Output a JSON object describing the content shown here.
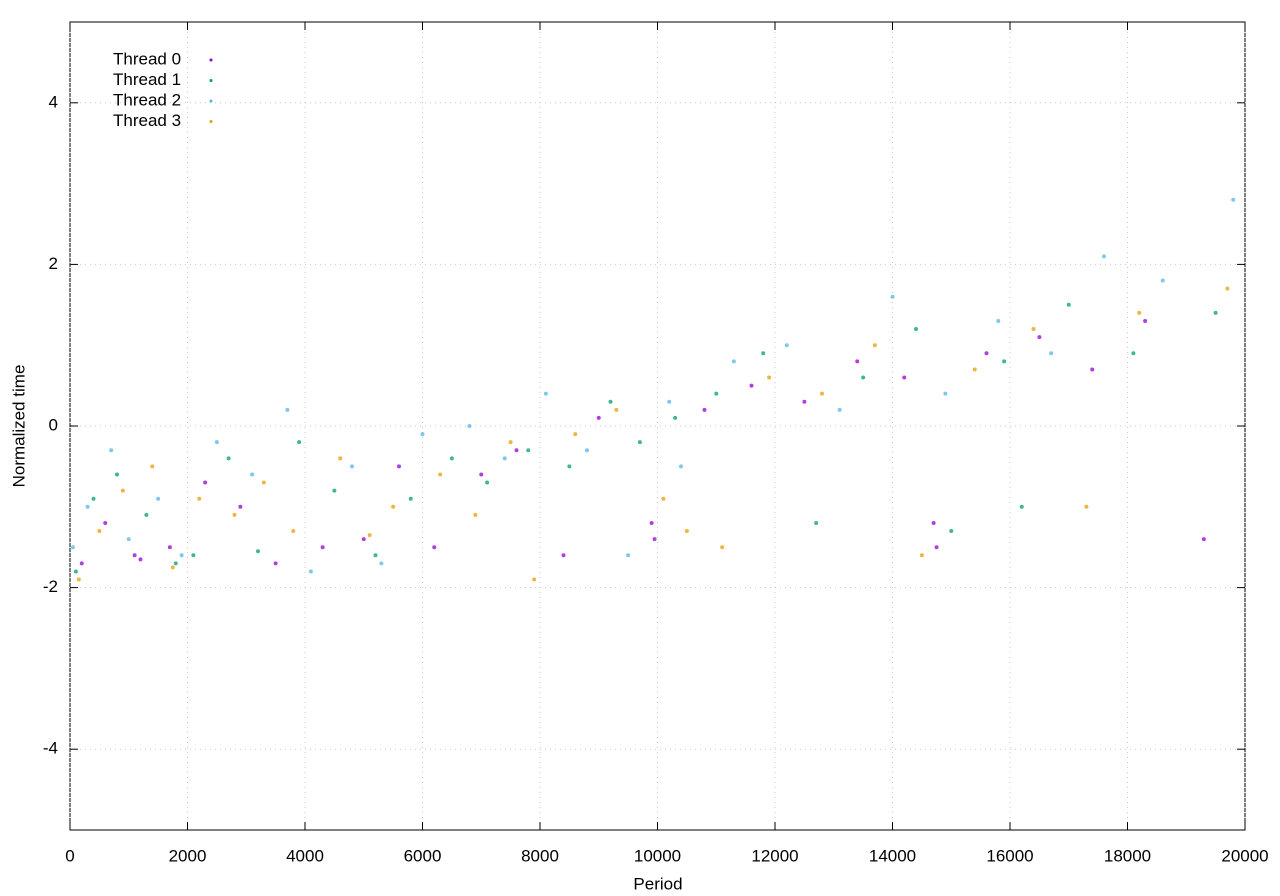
{
  "chart_data": {
    "type": "scatter",
    "x_label": "Period",
    "y_label": "Normalized time",
    "xlim": [
      0,
      20000
    ],
    "xticks": [
      0,
      2000,
      4000,
      6000,
      8000,
      10000,
      12000,
      14000,
      16000,
      18000,
      20000
    ],
    "ylim": [
      -5,
      5
    ],
    "yticks": [
      -4,
      -2,
      0,
      2,
      4
    ],
    "grid": true,
    "legend": "top-left",
    "series": [
      {
        "name": "Thread 0",
        "color": "#9400d3",
        "x": [
          200,
          600,
          1100,
          1200,
          1700,
          2300,
          2900,
          3500,
          4300,
          5000,
          5600,
          6200,
          7000,
          7600,
          8400,
          9000,
          9900,
          9950,
          10800,
          11600,
          12500,
          13400,
          14200,
          14700,
          14750,
          15600,
          16500,
          17400,
          18300,
          19300
        ],
        "values": [
          -1.7,
          -1.2,
          -1.6,
          -1.65,
          -1.5,
          -0.7,
          -1.0,
          -1.7,
          -1.5,
          -1.4,
          -0.5,
          -1.5,
          -0.6,
          -0.3,
          -1.6,
          0.1,
          -1.2,
          -1.4,
          0.2,
          0.5,
          0.3,
          0.8,
          0.6,
          -1.2,
          -1.5,
          0.9,
          1.1,
          0.7,
          1.3,
          -1.4
        ]
      },
      {
        "name": "Thread 1",
        "color": "#009e73",
        "x": [
          100,
          400,
          800,
          1300,
          1800,
          2100,
          2700,
          3200,
          3900,
          4500,
          5200,
          5800,
          6500,
          7100,
          7800,
          8500,
          9200,
          9700,
          10300,
          11000,
          11800,
          12700,
          13500,
          14400,
          15000,
          15900,
          16200,
          17000,
          18100,
          19500
        ],
        "values": [
          -1.8,
          -0.9,
          -0.6,
          -1.1,
          -1.7,
          -1.6,
          -0.4,
          -1.55,
          -0.2,
          -0.8,
          -1.6,
          -0.9,
          -0.4,
          -0.7,
          -0.3,
          -0.5,
          0.3,
          -0.2,
          0.1,
          0.4,
          0.9,
          -1.2,
          0.6,
          1.2,
          -1.3,
          0.8,
          -1.0,
          1.5,
          0.9,
          1.4
        ]
      },
      {
        "name": "Thread 2",
        "color": "#56b4e9",
        "x": [
          50,
          300,
          700,
          1000,
          1500,
          1900,
          2500,
          3100,
          3700,
          4100,
          4800,
          5300,
          6000,
          6800,
          7400,
          8100,
          8800,
          9500,
          10200,
          10400,
          11300,
          12200,
          13100,
          14000,
          14900,
          15800,
          16700,
          17600,
          18600,
          19800
        ],
        "values": [
          -1.5,
          -1.0,
          -0.3,
          -1.4,
          -0.9,
          -1.6,
          -0.2,
          -0.6,
          0.2,
          -1.8,
          -0.5,
          -1.7,
          -0.1,
          0.0,
          -0.4,
          0.4,
          -0.3,
          -1.6,
          0.3,
          -0.5,
          0.8,
          1.0,
          0.2,
          1.6,
          0.4,
          1.3,
          0.9,
          2.1,
          1.8,
          2.8
        ]
      },
      {
        "name": "Thread 3",
        "color": "#e69f00",
        "x": [
          150,
          500,
          900,
          1400,
          1750,
          2200,
          2800,
          3300,
          3800,
          4600,
          5100,
          5500,
          6300,
          6900,
          7500,
          7900,
          8600,
          9300,
          10100,
          10500,
          11100,
          11900,
          12800,
          13700,
          14500,
          15400,
          16400,
          17300,
          18200,
          19700
        ],
        "values": [
          -1.9,
          -1.3,
          -0.8,
          -0.5,
          -1.75,
          -0.9,
          -1.1,
          -0.7,
          -1.3,
          -0.4,
          -1.35,
          -1.0,
          -0.6,
          -1.1,
          -0.2,
          -1.9,
          -0.1,
          0.2,
          -0.9,
          -1.3,
          -1.5,
          0.6,
          0.4,
          1.0,
          -1.6,
          0.7,
          1.2,
          -1.0,
          1.4,
          1.7
        ]
      }
    ]
  }
}
